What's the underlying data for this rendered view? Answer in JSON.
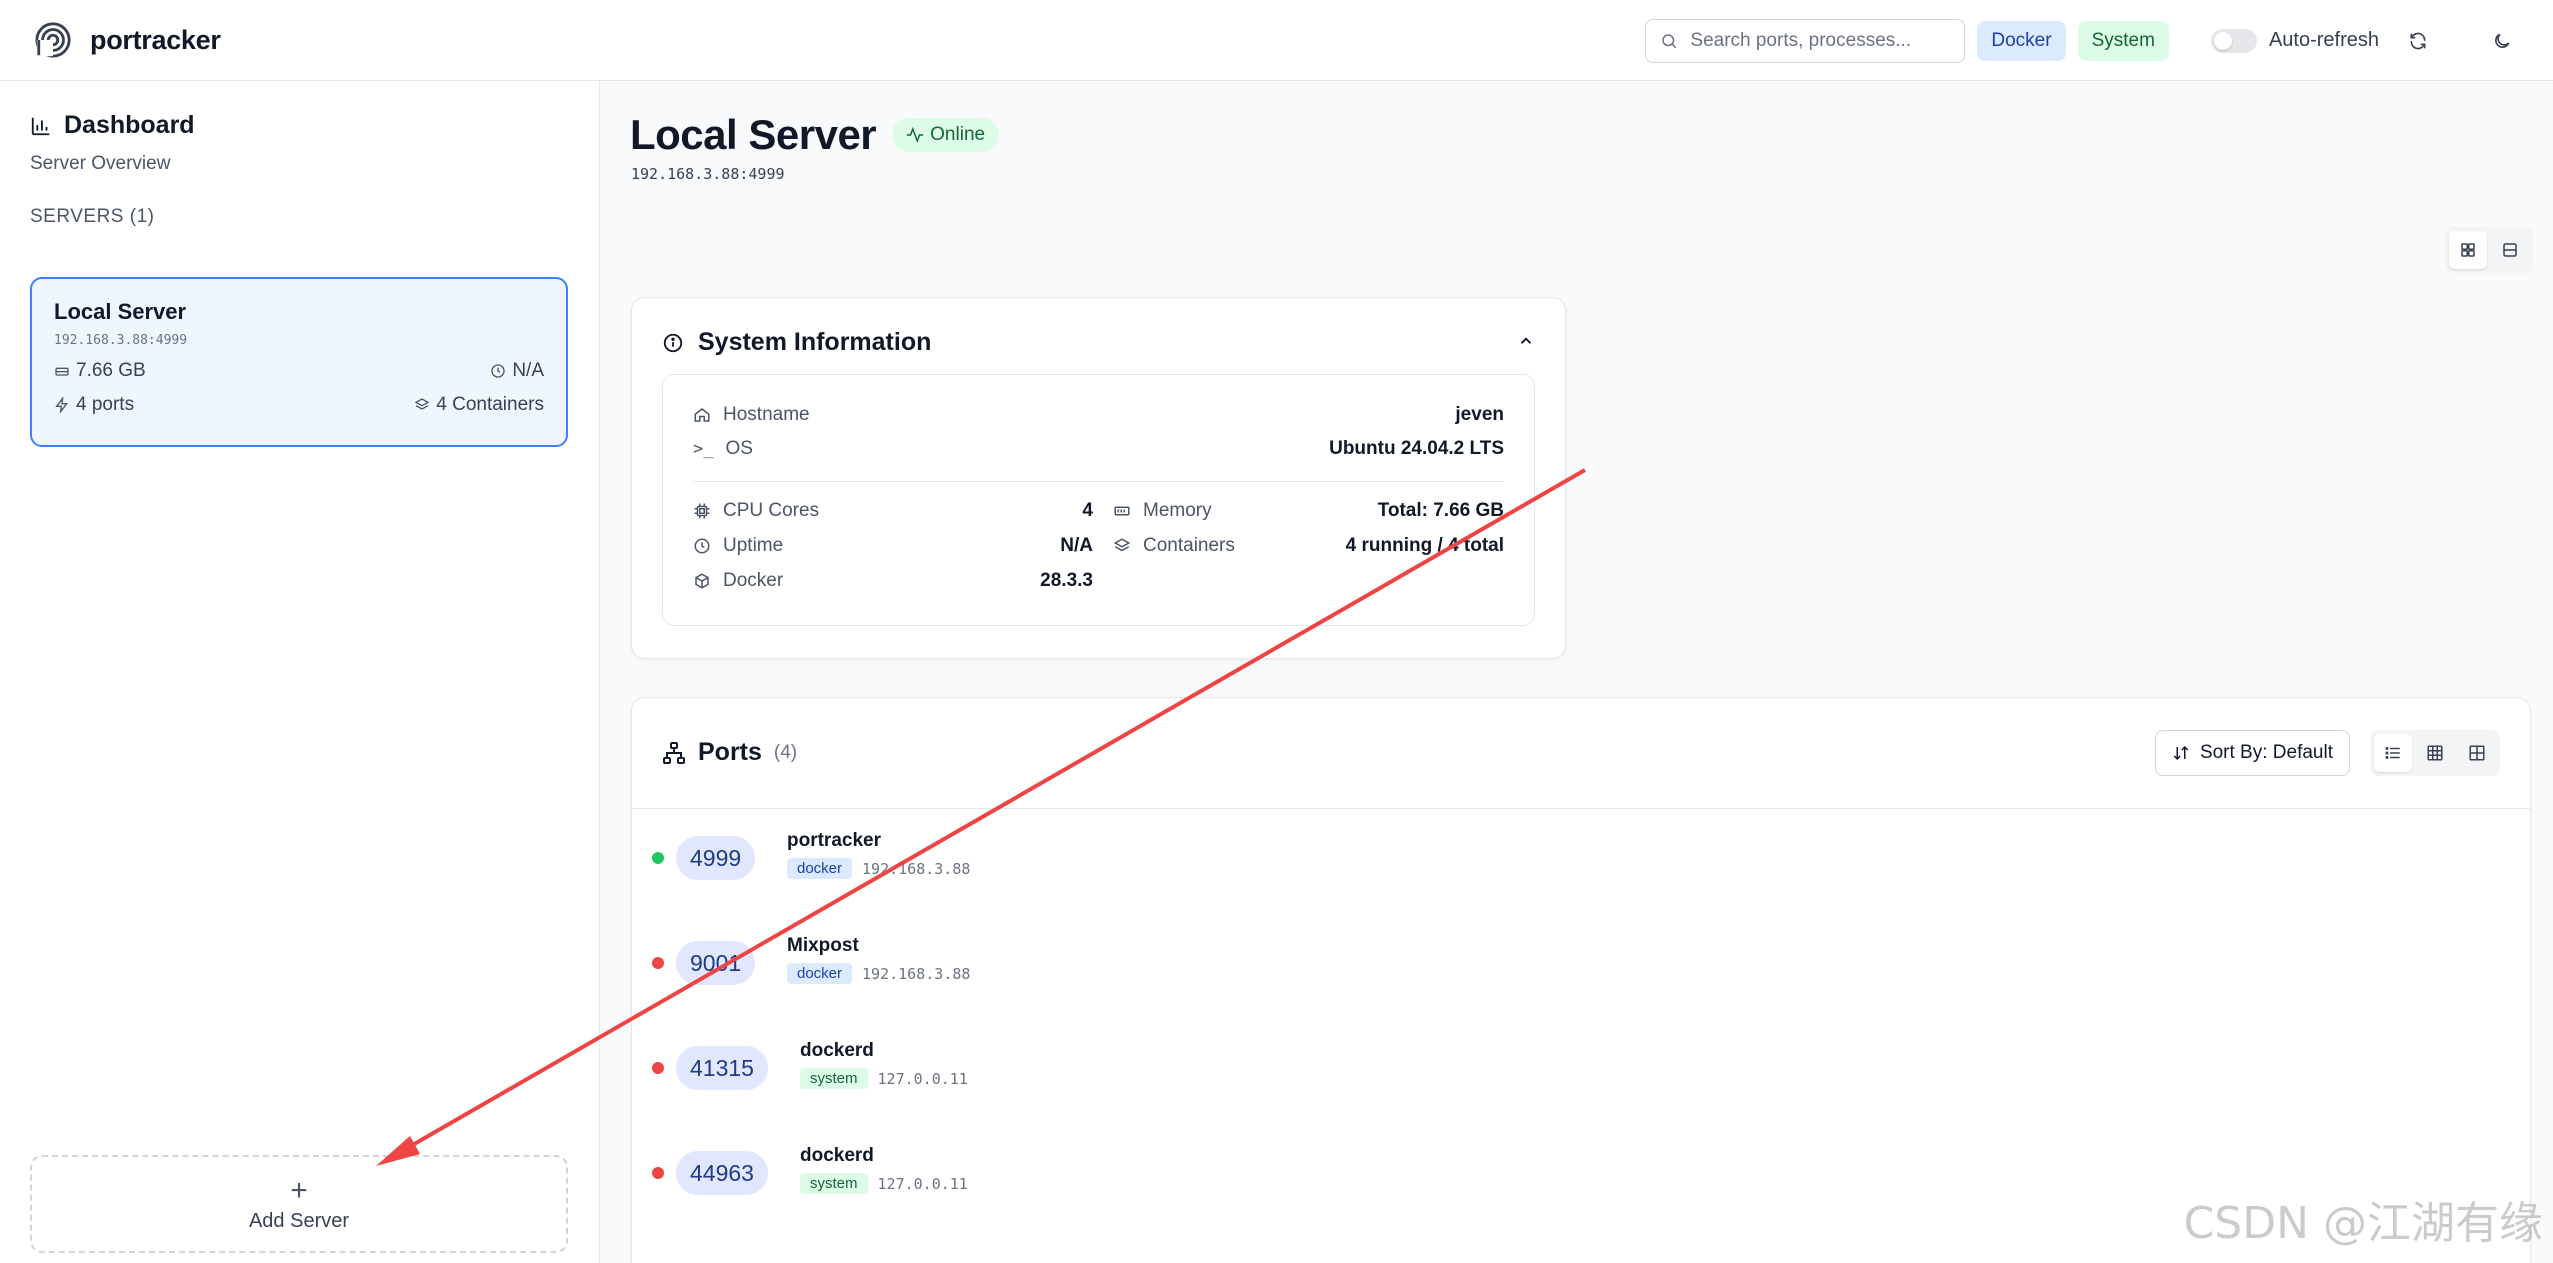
{
  "header": {
    "app_name": "portracker",
    "search_placeholder": "Search ports, processes...",
    "filter_docker": "Docker",
    "filter_system": "System",
    "auto_refresh_label": "Auto-refresh"
  },
  "sidebar": {
    "dashboard_title": "Dashboard",
    "dashboard_subtitle": "Server Overview",
    "servers_label": "SERVERS (1)",
    "server": {
      "name": "Local Server",
      "address": "192.168.3.88:4999",
      "memory": "7.66 GB",
      "uptime": "N/A",
      "ports": "4 ports",
      "containers": "4 Containers"
    },
    "add_server_label": "Add Server"
  },
  "main": {
    "title": "Local Server",
    "status": "Online",
    "address": "192.168.3.88:4999",
    "system_info": {
      "title": "System Information",
      "hostname_label": "Hostname",
      "hostname": "jeven",
      "os_label": "OS",
      "os": "Ubuntu 24.04.2 LTS",
      "cpu_label": "CPU Cores",
      "cpu": "4",
      "uptime_label": "Uptime",
      "uptime": "N/A",
      "docker_label": "Docker",
      "docker": "28.3.3",
      "memory_label": "Memory",
      "memory": "Total: 7.66 GB",
      "containers_label": "Containers",
      "containers": "4 running / 4 total"
    },
    "ports": {
      "title": "Ports",
      "count": "(4)",
      "sort_label": "Sort By: Default",
      "rows": [
        {
          "port": "4999",
          "name": "portracker",
          "tag": "docker",
          "ip": "192.168.3.88",
          "status": "green"
        },
        {
          "port": "9001",
          "name": "Mixpost",
          "tag": "docker",
          "ip": "192.168.3.88",
          "status": "red"
        },
        {
          "port": "41315",
          "name": "dockerd",
          "tag": "system",
          "ip": "127.0.0.11",
          "status": "red"
        },
        {
          "port": "44963",
          "name": "dockerd",
          "tag": "system",
          "ip": "127.0.0.11",
          "status": "red"
        }
      ]
    }
  },
  "watermark": "CSDN @江湖有缘",
  "colors": {
    "accent": "#3b82f6",
    "online": "#22c55e",
    "offline": "#ef4444",
    "annotation_arrow": "#ef4444"
  }
}
